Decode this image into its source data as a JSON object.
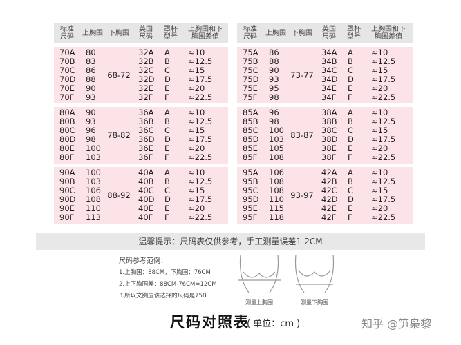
{
  "tables": [
    {
      "headers": [
        "标准\n尺码",
        "上胸围",
        "下胸围",
        "英国\n尺码",
        "罩杯\n型号",
        "上胸围和下\n胸围差值"
      ],
      "groups": [
        {
          "under": "68-72",
          "rows": [
            [
              "70A",
              "80",
              "32A",
              "A",
              "≈10"
            ],
            [
              "70B",
              "83",
              "32B",
              "B",
              "≈12.5"
            ],
            [
              "70C",
              "86",
              "32C",
              "C",
              "≈15"
            ],
            [
              "70D",
              "88",
              "32D",
              "D",
              "≈17.5"
            ],
            [
              "70E",
              "90",
              "32E",
              "E",
              "≈20"
            ],
            [
              "70F",
              "93",
              "32F",
              "F",
              "≈22.5"
            ]
          ]
        },
        {
          "under": "78-82",
          "rows": [
            [
              "80A",
              "90",
              "36A",
              "A",
              "≈10"
            ],
            [
              "80B",
              "93",
              "36B",
              "B",
              "≈12.5"
            ],
            [
              "80C",
              "96",
              "36C",
              "C",
              "≈15"
            ],
            [
              "80D",
              "98",
              "36D",
              "D",
              "≈17.5"
            ],
            [
              "80E",
              "100",
              "36E",
              "E",
              "≈20"
            ],
            [
              "80F",
              "103",
              "36F",
              "F",
              "≈22.5"
            ]
          ]
        },
        {
          "under": "88-92",
          "rows": [
            [
              "90A",
              "100",
              "40A",
              "A",
              "≈10"
            ],
            [
              "90B",
              "103",
              "40B",
              "B",
              "≈12.5"
            ],
            [
              "90C",
              "106",
              "40C",
              "C",
              "≈15"
            ],
            [
              "90D",
              "108",
              "40D",
              "D",
              "≈17.5"
            ],
            [
              "90E",
              "110",
              "40E",
              "E",
              "≈20"
            ],
            [
              "90F",
              "113",
              "40F",
              "F",
              "≈22.5"
            ]
          ]
        }
      ]
    },
    {
      "headers": [
        "标准\n尺码",
        "上胸围",
        "下胸围",
        "英国\n尺码",
        "罩杯\n型号",
        "上胸围和下\n胸围差值"
      ],
      "groups": [
        {
          "under": "73-77",
          "rows": [
            [
              "75A",
              "86",
              "34A",
              "A",
              "≈10"
            ],
            [
              "75B",
              "88",
              "34B",
              "B",
              "≈12.5"
            ],
            [
              "75C",
              "90",
              "34C",
              "C",
              "≈15"
            ],
            [
              "75D",
              "93",
              "34D",
              "D",
              "≈17.5"
            ],
            [
              "75E",
              "95",
              "34E",
              "E",
              "≈20"
            ],
            [
              "75F",
              "98",
              "34F",
              "F",
              "≈22.5"
            ]
          ]
        },
        {
          "under": "83-87",
          "rows": [
            [
              "85A",
              "96",
              "38A",
              "A",
              "≈10"
            ],
            [
              "85B",
              "98",
              "38B",
              "B",
              "≈12.5"
            ],
            [
              "85C",
              "100",
              "38C",
              "C",
              "≈15"
            ],
            [
              "85D",
              "103",
              "38D",
              "D",
              "≈17.5"
            ],
            [
              "85E",
              "105",
              "38E",
              "E",
              "≈20"
            ],
            [
              "85F",
              "108",
              "38F",
              "F",
              "≈22.5"
            ]
          ]
        },
        {
          "under": "93-97",
          "rows": [
            [
              "95A",
              "106",
              "42A",
              "A",
              "≈10"
            ],
            [
              "95B",
              "108",
              "42B",
              "B",
              "≈12.5"
            ],
            [
              "95C",
              "108",
              "42C",
              "C",
              "≈15"
            ],
            [
              "95D",
              "110",
              "42D",
              "D",
              "≈17.5"
            ],
            [
              "95E",
              "115",
              "42E",
              "E",
              "≈20"
            ],
            [
              "95F",
              "118",
              "42F",
              "F",
              "≈22.5"
            ]
          ]
        }
      ]
    }
  ],
  "notice": "温馨提示：尺码表仅供参考，手工测量误差1-2CM",
  "example": {
    "title": "尺码参考范例：",
    "lines": [
      "1.上胸围：88CM，下胸围：76CM",
      "2.上下胸围差：88CM-76CM=12CM",
      "3.所以文胸应该选择的尺码是75B"
    ]
  },
  "figures": [
    "测量上胸围",
    "测量下胸围"
  ],
  "footer": {
    "title": "尺码对照表",
    "unit": "( 单位：cm )",
    "watermark": "知乎 @笋枭黎"
  }
}
